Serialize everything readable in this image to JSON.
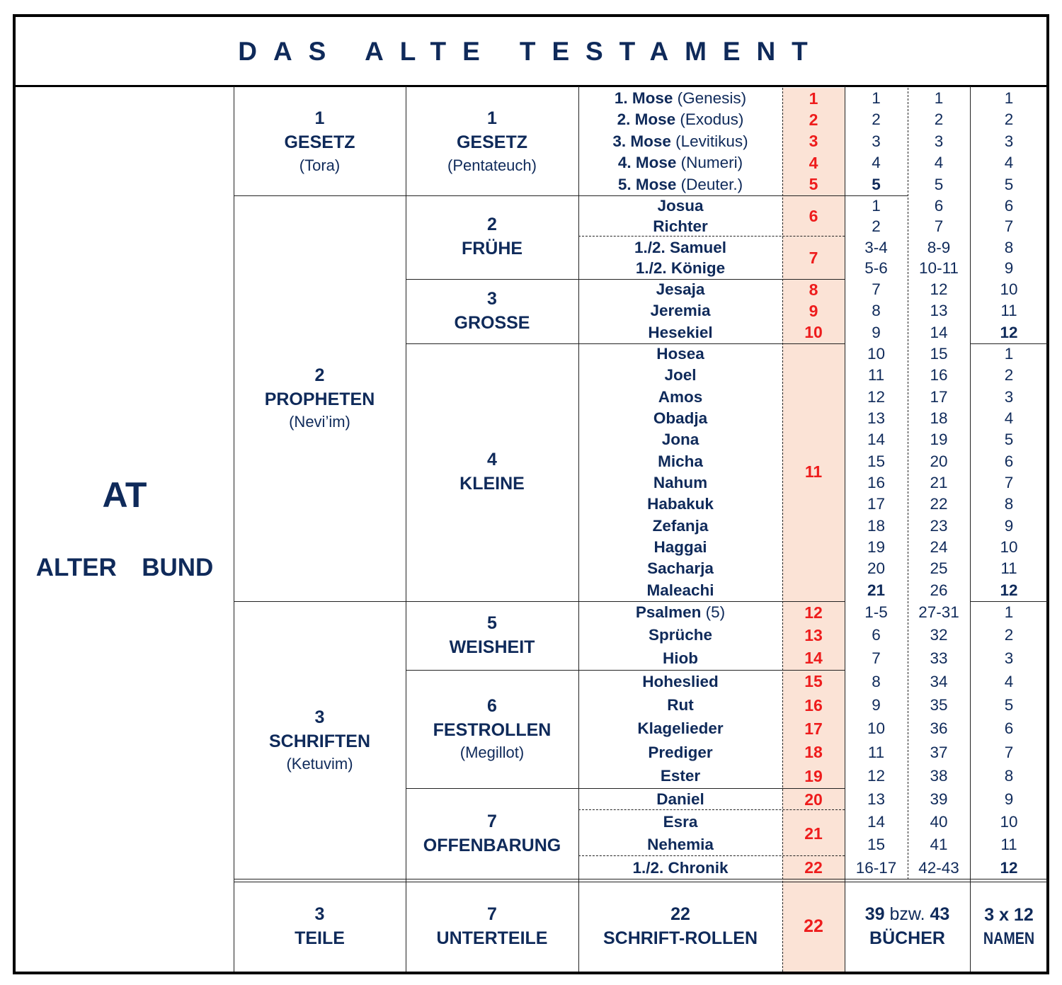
{
  "title": "DAS ALTE TESTAMENT",
  "testament": {
    "abbr": "AT",
    "name": "ALTER  BUND"
  },
  "colors": {
    "text": "#0f2a5a",
    "roll_numbers": "#ee1c1c",
    "roll_column_fill": "#fbe3d6"
  },
  "teile": [
    {
      "num": "1",
      "name": "GESETZ",
      "sub": "(Tora)"
    },
    {
      "num": "2",
      "name": "PROPHETEN",
      "sub": "(Nevi’im)"
    },
    {
      "num": "3",
      "name": "SCHRIFTEN",
      "sub": "(Ketuvim)"
    }
  ],
  "unterteile": [
    {
      "num": "1",
      "name": "GESETZ",
      "sub": "(Pentateuch)",
      "rolls": [
        {
          "number": "1",
          "books": [
            {
              "name": "1. Mose",
              "note": "(Genesis)",
              "col6": "1",
              "col7": "1",
              "col8": "1"
            }
          ]
        },
        {
          "number": "2",
          "books": [
            {
              "name": "2. Mose",
              "note": "(Exodus)",
              "col6": "2",
              "col7": "2",
              "col8": "2"
            }
          ]
        },
        {
          "number": "3",
          "books": [
            {
              "name": "3. Mose",
              "note": "(Levitikus)",
              "col6": "3",
              "col7": "3",
              "col8": "3"
            }
          ]
        },
        {
          "number": "4",
          "books": [
            {
              "name": "4. Mose",
              "note": "(Numeri)",
              "col6": "4",
              "col7": "4",
              "col8": "4"
            }
          ]
        },
        {
          "number": "5",
          "books": [
            {
              "name": "5. Mose",
              "note": "(Deuter.)",
              "col6": "5",
              "col7": "5",
              "col8": "5",
              "bold": [
                "col6"
              ]
            }
          ]
        }
      ]
    },
    {
      "num": "2",
      "name": "FRÜHE",
      "sub": "",
      "rolls": [
        {
          "number": "6",
          "books": [
            {
              "name": "Josua",
              "col6": "1",
              "col7": "6",
              "col8": "6"
            },
            {
              "name": "Richter",
              "col6": "2",
              "col7": "7",
              "col8": "7"
            }
          ]
        },
        {
          "number": "7",
          "books": [
            {
              "name": "1./2. Samuel",
              "col6": "3-4",
              "col7": "8-9",
              "col8": "8"
            },
            {
              "name": "1./2. Könige",
              "col6": "5-6",
              "col7": "10-11",
              "col8": "9"
            }
          ]
        }
      ]
    },
    {
      "num": "3",
      "name": "GROSSE",
      "sub": "",
      "rolls": [
        {
          "number": "8",
          "books": [
            {
              "name": "Jesaja",
              "col6": "7",
              "col7": "12",
              "col8": "10"
            }
          ]
        },
        {
          "number": "9",
          "books": [
            {
              "name": "Jeremia",
              "col6": "8",
              "col7": "13",
              "col8": "11"
            }
          ]
        },
        {
          "number": "10",
          "books": [
            {
              "name": "Hesekiel",
              "col6": "9",
              "col7": "14",
              "col8": "12",
              "bold": [
                "col8"
              ]
            }
          ]
        }
      ]
    },
    {
      "num": "4",
      "name": "KLEINE",
      "sub": "",
      "rolls": [
        {
          "number": "11",
          "books": [
            {
              "name": "Hosea",
              "col6": "10",
              "col7": "15",
              "col8": "1"
            },
            {
              "name": "Joel",
              "col6": "11",
              "col7": "16",
              "col8": "2"
            },
            {
              "name": "Amos",
              "col6": "12",
              "col7": "17",
              "col8": "3"
            },
            {
              "name": "Obadja",
              "col6": "13",
              "col7": "18",
              "col8": "4"
            },
            {
              "name": "Jona",
              "col6": "14",
              "col7": "19",
              "col8": "5"
            },
            {
              "name": "Micha",
              "col6": "15",
              "col7": "20",
              "col8": "6"
            },
            {
              "name": "Nahum",
              "col6": "16",
              "col7": "21",
              "col8": "7"
            },
            {
              "name": "Habakuk",
              "col6": "17",
              "col7": "22",
              "col8": "8"
            },
            {
              "name": "Zefanja",
              "col6": "18",
              "col7": "23",
              "col8": "9"
            },
            {
              "name": "Haggai",
              "col6": "19",
              "col7": "24",
              "col8": "10"
            },
            {
              "name": "Sacharja",
              "col6": "20",
              "col7": "25",
              "col8": "11"
            },
            {
              "name": "Maleachi",
              "col6": "21",
              "col7": "26",
              "col8": "12",
              "bold": [
                "col6",
                "col8"
              ]
            }
          ]
        }
      ]
    },
    {
      "num": "5",
      "name": "WEISHEIT",
      "sub": "",
      "rolls": [
        {
          "number": "12",
          "books": [
            {
              "name": "Psalmen",
              "note": "(5)",
              "col6": "1-5",
              "col7": "27-31",
              "col8": "1"
            }
          ]
        },
        {
          "number": "13",
          "books": [
            {
              "name": "Sprüche",
              "col6": "6",
              "col7": "32",
              "col8": "2"
            }
          ]
        },
        {
          "number": "14",
          "books": [
            {
              "name": "Hiob",
              "col6": "7",
              "col7": "33",
              "col8": "3"
            }
          ]
        }
      ]
    },
    {
      "num": "6",
      "name": "FESTROLLEN",
      "sub": "(Megillot)",
      "rolls": [
        {
          "number": "15",
          "books": [
            {
              "name": "Hoheslied",
              "col6": "8",
              "col7": "34",
              "col8": "4"
            }
          ]
        },
        {
          "number": "16",
          "books": [
            {
              "name": "Rut",
              "col6": "9",
              "col7": "35",
              "col8": "5"
            }
          ]
        },
        {
          "number": "17",
          "books": [
            {
              "name": "Klagelieder",
              "col6": "10",
              "col7": "36",
              "col8": "6"
            }
          ]
        },
        {
          "number": "18",
          "books": [
            {
              "name": "Prediger",
              "col6": "11",
              "col7": "37",
              "col8": "7"
            }
          ]
        },
        {
          "number": "19",
          "books": [
            {
              "name": "Ester",
              "col6": "12",
              "col7": "38",
              "col8": "8"
            }
          ]
        }
      ]
    },
    {
      "num": "7",
      "name": "OFFENBARUNG",
      "sub": "",
      "rolls": [
        {
          "number": "20",
          "books": [
            {
              "name": "Daniel",
              "col6": "13",
              "col7": "39",
              "col8": "9"
            }
          ]
        },
        {
          "number": "21",
          "books": [
            {
              "name": "Esra",
              "col6": "14",
              "col7": "40",
              "col8": "10"
            },
            {
              "name": "Nehemia",
              "col6": "15",
              "col7": "41",
              "col8": "11"
            }
          ]
        },
        {
          "number": "22",
          "books": [
            {
              "name": "1./2. Chronik",
              "col6": "16-17",
              "col7": "42-43",
              "col8": "12",
              "bold": [
                "col8"
              ]
            }
          ]
        }
      ]
    }
  ],
  "footer": {
    "teile": {
      "num": "3",
      "label": "TEILE"
    },
    "unterteile": {
      "num": "7",
      "label": "UNTERTEILE"
    },
    "rollen": {
      "num": "22",
      "label": "SCHRIFT-ROLLEN"
    },
    "rollen_red": "22",
    "buecher": {
      "a": "39",
      "conj": "bzw.",
      "b": "43",
      "label": "BÜCHER"
    },
    "namen": {
      "num": "3 x 12",
      "label": "NAMEN"
    }
  }
}
